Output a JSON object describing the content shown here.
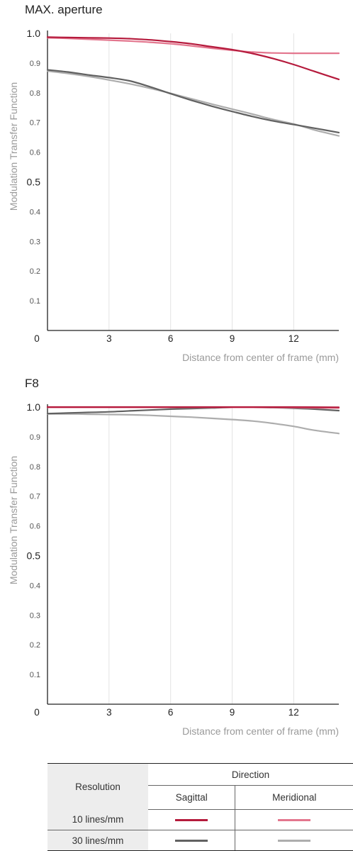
{
  "colors": {
    "sagittal_10": "#b51a3c",
    "meridional_10": "#e3768e",
    "sagittal_30": "#616161",
    "meridional_30": "#adadad",
    "grid": "#e3e3e3",
    "axis": "#222222",
    "muted_text": "#9a9a9a"
  },
  "chart_data": [
    {
      "type": "line",
      "title": "MAX. aperture",
      "xlabel": "Distance from center of frame (mm)",
      "ylabel": "Modulation Transfer Function",
      "xlim": [
        0,
        14.2
      ],
      "ylim": [
        0,
        1.0
      ],
      "x_ticks": [
        0,
        3,
        6,
        9,
        12
      ],
      "y_ticks": [
        {
          "value": 1.0,
          "label": "1.0"
        },
        {
          "value": 0.9,
          "label": "0.9"
        },
        {
          "value": 0.8,
          "label": "0.8"
        },
        {
          "value": 0.7,
          "label": "0.7"
        },
        {
          "value": 0.6,
          "label": "0.6"
        },
        {
          "value": 0.5,
          "label": "0.5"
        },
        {
          "value": 0.4,
          "label": "0.4"
        },
        {
          "value": 0.3,
          "label": "0.3"
        },
        {
          "value": 0.2,
          "label": "0.2"
        },
        {
          "value": 0.1,
          "label": "0.1"
        }
      ],
      "grid": true,
      "series": [
        {
          "key": "sagittal_10",
          "x": [
            0,
            1,
            2,
            3,
            4,
            5,
            6,
            7,
            8,
            9,
            10,
            11,
            12,
            13,
            14.2
          ],
          "values": [
            0.987,
            0.986,
            0.985,
            0.984,
            0.982,
            0.978,
            0.972,
            0.965,
            0.955,
            0.945,
            0.932,
            0.915,
            0.895,
            0.872,
            0.845
          ]
        },
        {
          "key": "meridional_10",
          "x": [
            0,
            1,
            2,
            3,
            4,
            5,
            6,
            7,
            8,
            9,
            10,
            11,
            12,
            13,
            14.2
          ],
          "values": [
            0.985,
            0.983,
            0.98,
            0.977,
            0.974,
            0.97,
            0.965,
            0.958,
            0.95,
            0.943,
            0.937,
            0.934,
            0.933,
            0.933,
            0.933
          ]
        },
        {
          "key": "sagittal_30",
          "x": [
            0,
            1,
            2,
            3,
            4,
            5,
            6,
            7,
            8,
            9,
            10,
            11,
            12,
            13,
            14.2
          ],
          "values": [
            0.877,
            0.87,
            0.86,
            0.851,
            0.84,
            0.82,
            0.797,
            0.775,
            0.755,
            0.737,
            0.72,
            0.705,
            0.693,
            0.681,
            0.666
          ]
        },
        {
          "key": "meridional_30",
          "x": [
            0,
            1,
            2,
            3,
            4,
            5,
            6,
            7,
            8,
            9,
            10,
            11,
            12,
            13,
            14.2
          ],
          "values": [
            0.873,
            0.865,
            0.855,
            0.843,
            0.83,
            0.815,
            0.798,
            0.78,
            0.762,
            0.745,
            0.728,
            0.71,
            0.695,
            0.675,
            0.655
          ]
        }
      ]
    },
    {
      "type": "line",
      "title": "F8",
      "xlabel": "Distance from center of frame (mm)",
      "ylabel": "Modulation Transfer Function",
      "xlim": [
        0,
        14.2
      ],
      "ylim": [
        0,
        1.0
      ],
      "x_ticks": [
        0,
        3,
        6,
        9,
        12
      ],
      "y_ticks": [
        {
          "value": 1.0,
          "label": "1.0"
        },
        {
          "value": 0.9,
          "label": "0.9"
        },
        {
          "value": 0.8,
          "label": "0.8"
        },
        {
          "value": 0.7,
          "label": "0.7"
        },
        {
          "value": 0.6,
          "label": "0.6"
        },
        {
          "value": 0.5,
          "label": "0.5"
        },
        {
          "value": 0.4,
          "label": "0.4"
        },
        {
          "value": 0.3,
          "label": "0.3"
        },
        {
          "value": 0.2,
          "label": "0.2"
        },
        {
          "value": 0.1,
          "label": "0.1"
        }
      ],
      "grid": true,
      "series": [
        {
          "key": "sagittal_10",
          "x": [
            0,
            2,
            4,
            6,
            8,
            10,
            12,
            14.2
          ],
          "values": [
            1.0,
            1.0,
            1.0,
            1.0,
            1.0,
            1.0,
            1.0,
            0.999
          ]
        },
        {
          "key": "meridional_10",
          "x": [
            0,
            2,
            4,
            6,
            8,
            10,
            12,
            14.2
          ],
          "values": [
            0.999,
            0.999,
            0.999,
            0.999,
            0.999,
            0.999,
            0.998,
            0.997
          ]
        },
        {
          "key": "sagittal_30",
          "x": [
            0,
            1,
            2,
            3,
            4,
            5,
            6,
            7,
            8,
            9,
            10,
            11,
            12,
            13,
            14.2
          ],
          "values": [
            0.978,
            0.98,
            0.982,
            0.984,
            0.987,
            0.99,
            0.993,
            0.995,
            0.997,
            0.999,
            0.999,
            0.998,
            0.996,
            0.993,
            0.988
          ]
        },
        {
          "key": "meridional_30",
          "x": [
            0,
            1,
            2,
            3,
            4,
            5,
            6,
            7,
            8,
            9,
            10,
            11,
            12,
            13,
            14.2
          ],
          "values": [
            0.977,
            0.977,
            0.976,
            0.975,
            0.974,
            0.972,
            0.969,
            0.966,
            0.962,
            0.958,
            0.953,
            0.945,
            0.935,
            0.922,
            0.911
          ]
        }
      ]
    }
  ],
  "legend": {
    "resolution_label": "Resolution",
    "direction_label": "Direction",
    "sagittal_label": "Sagittal",
    "meridional_label": "Meridional",
    "rows": [
      {
        "label": "10 lines/mm",
        "sagittal_key": "sagittal_10",
        "meridional_key": "meridional_10"
      },
      {
        "label": "30 lines/mm",
        "sagittal_key": "sagittal_30",
        "meridional_key": "meridional_30"
      }
    ]
  }
}
